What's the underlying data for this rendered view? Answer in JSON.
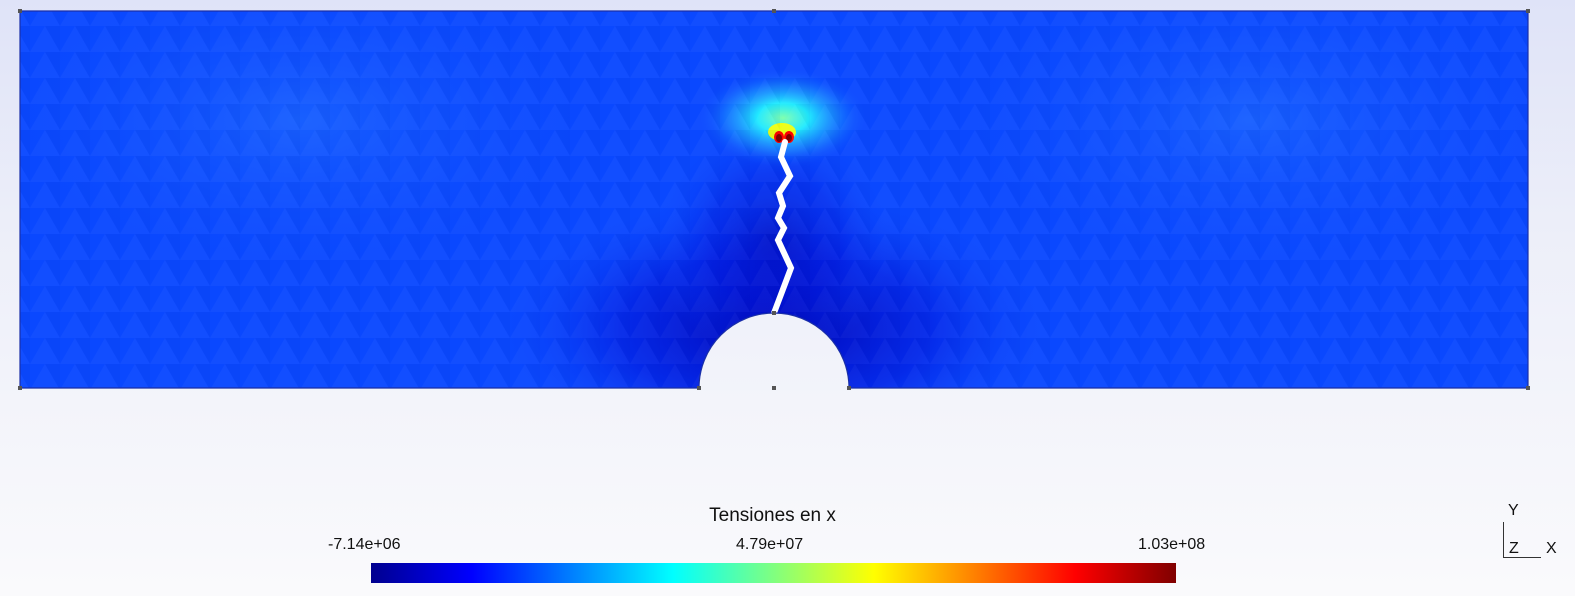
{
  "legend": {
    "title": "Tensiones en x",
    "min_label": "-7.14e+06",
    "mid_label": "4.79e+07",
    "max_label": "1.03e+08",
    "colormap": [
      "#00008f",
      "#0000ff",
      "#0080ff",
      "#00ffff",
      "#80ff80",
      "#ffff00",
      "#ff8000",
      "#ff0000",
      "#800000"
    ]
  },
  "axes": {
    "y_label": "Y",
    "z_label": "Z",
    "x_label": "X"
  },
  "field": {
    "background_color": "#0a48ff",
    "compression_color": "#0000c8",
    "peak_colors": [
      "#00ffff",
      "#ffff00",
      "#ff0000",
      "#800000"
    ]
  }
}
